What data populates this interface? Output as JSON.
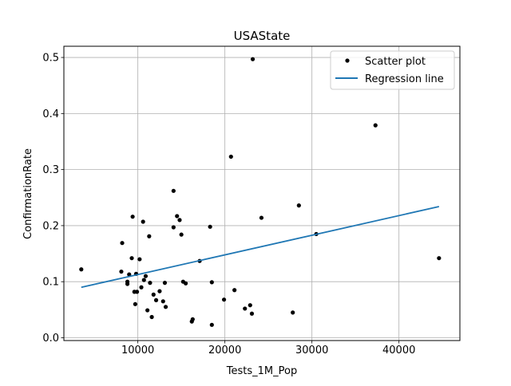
{
  "chart_data": {
    "type": "scatter",
    "title": "USAState",
    "xlabel": "Tests_1M_Pop",
    "ylabel": "ConfirmationRate",
    "xlim": [
      1500,
      47000
    ],
    "ylim": [
      -0.005,
      0.52
    ],
    "xticks": [
      10000,
      20000,
      30000,
      40000
    ],
    "xtick_labels": [
      "10000",
      "20000",
      "30000",
      "40000"
    ],
    "yticks": [
      0.0,
      0.1,
      0.2,
      0.3,
      0.4,
      0.5
    ],
    "ytick_labels": [
      "0.0",
      "0.1",
      "0.2",
      "0.3",
      "0.4",
      "0.5"
    ],
    "grid": true,
    "legend_position": "upper right",
    "series": [
      {
        "name": "Scatter plot",
        "kind": "scatter",
        "color": "#000000",
        "points": [
          [
            3500,
            0.122
          ],
          [
            8200,
            0.169
          ],
          [
            8100,
            0.118
          ],
          [
            8800,
            0.1
          ],
          [
            8800,
            0.096
          ],
          [
            9000,
            0.113
          ],
          [
            9300,
            0.142
          ],
          [
            9400,
            0.216
          ],
          [
            9600,
            0.082
          ],
          [
            9700,
            0.06
          ],
          [
            9900,
            0.082
          ],
          [
            9800,
            0.114
          ],
          [
            10200,
            0.14
          ],
          [
            10400,
            0.09
          ],
          [
            10600,
            0.207
          ],
          [
            10700,
            0.103
          ],
          [
            10900,
            0.11
          ],
          [
            11100,
            0.049
          ],
          [
            11300,
            0.181
          ],
          [
            11400,
            0.098
          ],
          [
            11600,
            0.037
          ],
          [
            11800,
            0.077
          ],
          [
            12100,
            0.067
          ],
          [
            12500,
            0.083
          ],
          [
            12900,
            0.065
          ],
          [
            13100,
            0.098
          ],
          [
            13200,
            0.055
          ],
          [
            14100,
            0.262
          ],
          [
            14100,
            0.197
          ],
          [
            14500,
            0.217
          ],
          [
            14800,
            0.21
          ],
          [
            15000,
            0.184
          ],
          [
            15200,
            0.1
          ],
          [
            15500,
            0.097
          ],
          [
            16200,
            0.029
          ],
          [
            16300,
            0.033
          ],
          [
            17100,
            0.137
          ],
          [
            18300,
            0.198
          ],
          [
            18500,
            0.099
          ],
          [
            18500,
            0.023
          ],
          [
            19900,
            0.068
          ],
          [
            20700,
            0.323
          ],
          [
            21100,
            0.085
          ],
          [
            22300,
            0.052
          ],
          [
            22900,
            0.058
          ],
          [
            23100,
            0.043
          ],
          [
            23200,
            0.497
          ],
          [
            24200,
            0.214
          ],
          [
            27800,
            0.045
          ],
          [
            28500,
            0.236
          ],
          [
            30500,
            0.185
          ],
          [
            37300,
            0.379
          ],
          [
            44600,
            0.142
          ]
        ]
      },
      {
        "name": "Regression line",
        "kind": "line",
        "color": "#1f77b4",
        "x": [
          3500,
          44600
        ],
        "y": [
          0.09,
          0.234
        ]
      }
    ]
  }
}
